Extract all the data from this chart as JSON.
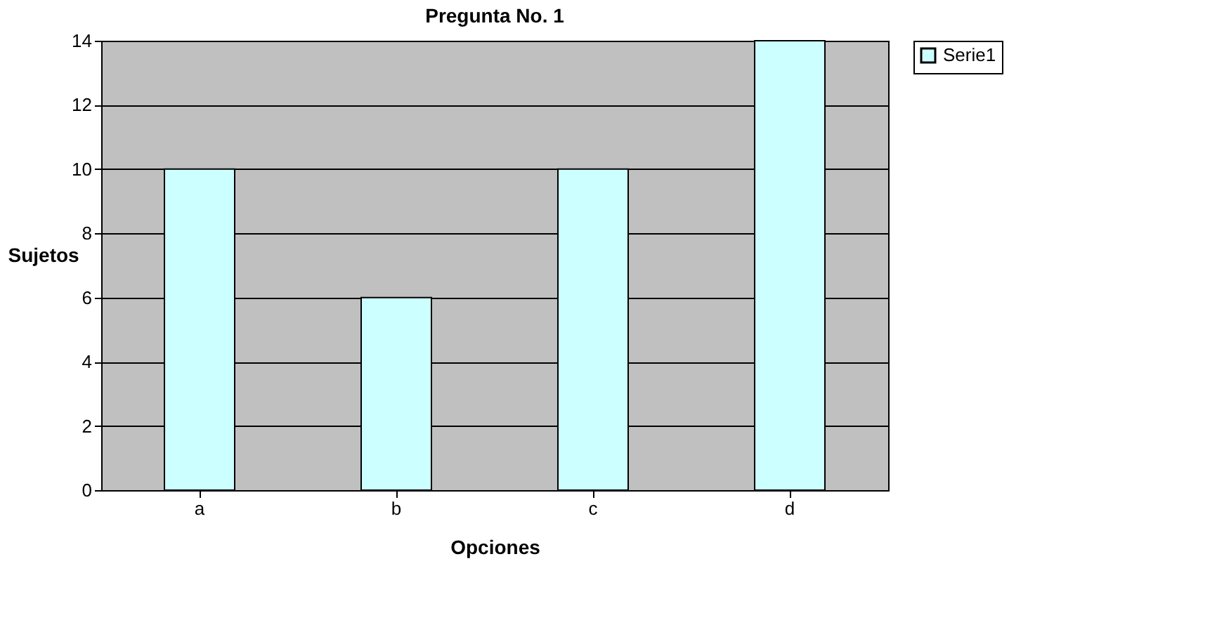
{
  "chart_data": {
    "type": "bar",
    "title": "Pregunta No. 1",
    "xlabel": "Opciones",
    "ylabel": "Sujetos",
    "categories": [
      "a",
      "b",
      "c",
      "d"
    ],
    "series": [
      {
        "name": "Serie1",
        "color": "#ccffff",
        "values": [
          10,
          6,
          10,
          14
        ]
      }
    ],
    "ylim": [
      0,
      14
    ],
    "yticks": [
      0,
      2,
      4,
      6,
      8,
      10,
      12,
      14
    ],
    "grid": "y",
    "legend": "right"
  }
}
